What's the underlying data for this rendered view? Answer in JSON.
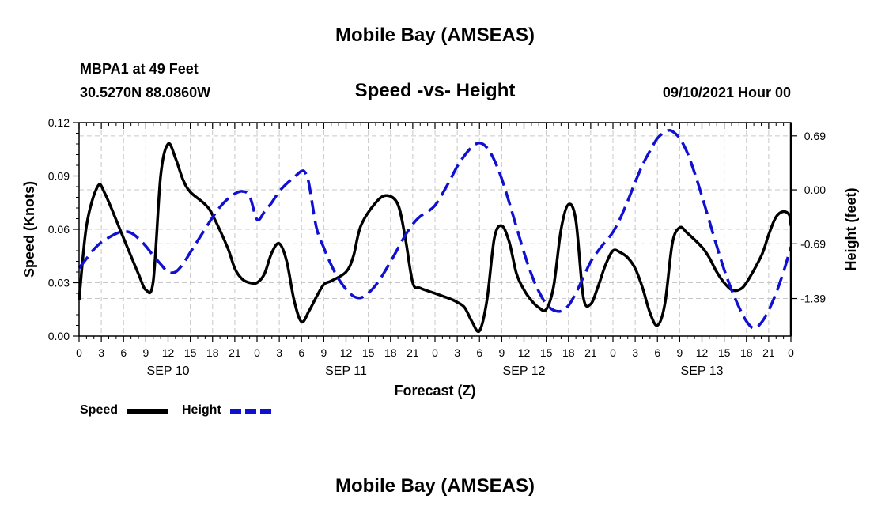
{
  "header": {
    "title": "Mobile Bay (AMSEAS)",
    "station": "MBPA1 at 49 Feet",
    "coords": "30.5270N  88.0860W",
    "subtitle": "Speed -vs- Height",
    "datetime": "09/10/2021 Hour 00"
  },
  "footer": {
    "title": "Mobile Bay (AMSEAS)"
  },
  "legend": {
    "speed_label": "Speed",
    "height_label": "Height",
    "speed_color": "#000000",
    "height_color": "#1010d0"
  },
  "chart_data": {
    "type": "line",
    "title": "Speed -vs- Height",
    "xlabel": "Forecast (Z)",
    "ylabel_left": "Speed (Knots)",
    "ylabel_right": "Height (feet)",
    "x_range_hours": [
      0,
      96
    ],
    "ylim_left": [
      0,
      0.12
    ],
    "ylim_right": [
      -1.87,
      0.86
    ],
    "x_ticks": [
      {
        "h": 0,
        "label": "0"
      },
      {
        "h": 3,
        "label": "3"
      },
      {
        "h": 6,
        "label": "6"
      },
      {
        "h": 9,
        "label": "9"
      },
      {
        "h": 12,
        "label": "12"
      },
      {
        "h": 15,
        "label": "15"
      },
      {
        "h": 18,
        "label": "18"
      },
      {
        "h": 21,
        "label": "21"
      },
      {
        "h": 24,
        "label": "0"
      },
      {
        "h": 27,
        "label": "3"
      },
      {
        "h": 30,
        "label": "6"
      },
      {
        "h": 33,
        "label": "9"
      },
      {
        "h": 36,
        "label": "12"
      },
      {
        "h": 39,
        "label": "15"
      },
      {
        "h": 42,
        "label": "18"
      },
      {
        "h": 45,
        "label": "21"
      },
      {
        "h": 48,
        "label": "0"
      },
      {
        "h": 51,
        "label": "3"
      },
      {
        "h": 54,
        "label": "6"
      },
      {
        "h": 57,
        "label": "9"
      },
      {
        "h": 60,
        "label": "12"
      },
      {
        "h": 63,
        "label": "15"
      },
      {
        "h": 66,
        "label": "18"
      },
      {
        "h": 69,
        "label": "21"
      },
      {
        "h": 72,
        "label": "0"
      },
      {
        "h": 75,
        "label": "3"
      },
      {
        "h": 78,
        "label": "6"
      },
      {
        "h": 81,
        "label": "9"
      },
      {
        "h": 84,
        "label": "12"
      },
      {
        "h": 87,
        "label": "15"
      },
      {
        "h": 90,
        "label": "18"
      },
      {
        "h": 93,
        "label": "21"
      },
      {
        "h": 96,
        "label": "0"
      }
    ],
    "day_labels": [
      {
        "h": 12,
        "label": "SEP 10"
      },
      {
        "h": 36,
        "label": "SEP 11"
      },
      {
        "h": 60,
        "label": "SEP 12"
      },
      {
        "h": 84,
        "label": "SEP 13"
      }
    ],
    "y_left_ticks": [
      {
        "v": 0.0,
        "label": "0.00"
      },
      {
        "v": 0.03,
        "label": "0.03"
      },
      {
        "v": 0.06,
        "label": "0.06"
      },
      {
        "v": 0.09,
        "label": "0.09"
      },
      {
        "v": 0.12,
        "label": "0.12"
      }
    ],
    "y_right_ticks": [
      {
        "v": 0.69,
        "label": "0.69"
      },
      {
        "v": 0.0,
        "label": "0.00"
      },
      {
        "v": -0.69,
        "label": "-0.69"
      },
      {
        "v": -1.39,
        "label": "-1.39"
      }
    ],
    "series": [
      {
        "name": "Speed",
        "axis": "left",
        "color": "#000000",
        "dash": "solid",
        "points": [
          [
            0,
            0.02
          ],
          [
            1,
            0.062
          ],
          [
            2.5,
            0.084
          ],
          [
            3.5,
            0.08
          ],
          [
            6,
            0.055
          ],
          [
            8,
            0.035
          ],
          [
            9,
            0.026
          ],
          [
            10,
            0.031
          ],
          [
            11,
            0.09
          ],
          [
            12,
            0.108
          ],
          [
            13,
            0.1
          ],
          [
            14,
            0.088
          ],
          [
            15,
            0.081
          ],
          [
            17,
            0.074
          ],
          [
            18,
            0.068
          ],
          [
            20,
            0.05
          ],
          [
            21,
            0.038
          ],
          [
            22,
            0.032
          ],
          [
            23,
            0.03
          ],
          [
            24,
            0.03
          ],
          [
            25,
            0.035
          ],
          [
            26,
            0.047
          ],
          [
            27,
            0.052
          ],
          [
            28,
            0.042
          ],
          [
            29,
            0.02
          ],
          [
            30,
            0.008
          ],
          [
            31,
            0.014
          ],
          [
            32,
            0.022
          ],
          [
            33,
            0.029
          ],
          [
            34,
            0.031
          ],
          [
            36,
            0.036
          ],
          [
            37,
            0.045
          ],
          [
            38,
            0.062
          ],
          [
            40,
            0.075
          ],
          [
            41.5,
            0.079
          ],
          [
            43,
            0.074
          ],
          [
            44,
            0.055
          ],
          [
            45,
            0.03
          ],
          [
            46,
            0.027
          ],
          [
            48,
            0.024
          ],
          [
            50,
            0.021
          ],
          [
            51,
            0.019
          ],
          [
            52,
            0.016
          ],
          [
            53,
            0.008
          ],
          [
            54,
            0.003
          ],
          [
            55,
            0.02
          ],
          [
            56,
            0.055
          ],
          [
            57,
            0.062
          ],
          [
            58,
            0.053
          ],
          [
            59,
            0.035
          ],
          [
            60,
            0.026
          ],
          [
            61,
            0.02
          ],
          [
            62,
            0.016
          ],
          [
            63,
            0.015
          ],
          [
            64,
            0.028
          ],
          [
            65,
            0.06
          ],
          [
            66,
            0.074
          ],
          [
            67,
            0.065
          ],
          [
            68,
            0.022
          ],
          [
            69,
            0.018
          ],
          [
            70,
            0.028
          ],
          [
            71,
            0.04
          ],
          [
            72,
            0.048
          ],
          [
            73,
            0.047
          ],
          [
            74,
            0.044
          ],
          [
            75,
            0.038
          ],
          [
            76,
            0.027
          ],
          [
            77,
            0.013
          ],
          [
            78,
            0.006
          ],
          [
            79,
            0.018
          ],
          [
            80,
            0.052
          ],
          [
            81,
            0.061
          ],
          [
            82,
            0.058
          ],
          [
            84,
            0.05
          ],
          [
            85,
            0.044
          ],
          [
            86,
            0.036
          ],
          [
            87,
            0.03
          ],
          [
            88,
            0.026
          ],
          [
            89,
            0.026
          ],
          [
            90,
            0.03
          ],
          [
            92,
            0.045
          ],
          [
            93,
            0.057
          ],
          [
            94,
            0.067
          ],
          [
            95,
            0.07
          ],
          [
            95.8,
            0.068
          ],
          [
            96,
            0.062
          ]
        ]
      },
      {
        "name": "Height",
        "axis": "right",
        "color": "#1010d0",
        "dash": "dashed",
        "points": [
          [
            0,
            -1.0
          ],
          [
            1,
            -0.88
          ],
          [
            2,
            -0.76
          ],
          [
            3,
            -0.67
          ],
          [
            4,
            -0.61
          ],
          [
            5,
            -0.56
          ],
          [
            6,
            -0.53
          ],
          [
            7,
            -0.55
          ],
          [
            8,
            -0.62
          ],
          [
            9,
            -0.72
          ],
          [
            10,
            -0.84
          ],
          [
            11,
            -0.95
          ],
          [
            12,
            -1.05
          ],
          [
            13,
            -1.05
          ],
          [
            14,
            -0.95
          ],
          [
            15,
            -0.8
          ],
          [
            16,
            -0.65
          ],
          [
            17,
            -0.5
          ],
          [
            18,
            -0.35
          ],
          [
            19,
            -0.22
          ],
          [
            20,
            -0.12
          ],
          [
            21,
            -0.05
          ],
          [
            22,
            -0.02
          ],
          [
            23,
            -0.08
          ],
          [
            24,
            -0.38
          ],
          [
            25,
            -0.28
          ],
          [
            26,
            -0.16
          ],
          [
            27,
            -0.02
          ],
          [
            28,
            0.08
          ],
          [
            29,
            0.16
          ],
          [
            30,
            0.24
          ],
          [
            30.5,
            0.22
          ],
          [
            31,
            0.08
          ],
          [
            32,
            -0.48
          ],
          [
            33,
            -0.74
          ],
          [
            34,
            -0.96
          ],
          [
            35,
            -1.14
          ],
          [
            36,
            -1.27
          ],
          [
            37,
            -1.36
          ],
          [
            38,
            -1.38
          ],
          [
            39,
            -1.32
          ],
          [
            40,
            -1.22
          ],
          [
            41,
            -1.08
          ],
          [
            42,
            -0.92
          ],
          [
            43,
            -0.75
          ],
          [
            44,
            -0.58
          ],
          [
            45,
            -0.44
          ],
          [
            46,
            -0.34
          ],
          [
            47,
            -0.28
          ],
          [
            48,
            -0.2
          ],
          [
            49,
            -0.05
          ],
          [
            50,
            0.12
          ],
          [
            51,
            0.3
          ],
          [
            52,
            0.44
          ],
          [
            53,
            0.55
          ],
          [
            54,
            0.6
          ],
          [
            55,
            0.54
          ],
          [
            56,
            0.38
          ],
          [
            57,
            0.14
          ],
          [
            58,
            -0.16
          ],
          [
            59,
            -0.48
          ],
          [
            60,
            -0.8
          ],
          [
            61,
            -1.08
          ],
          [
            62,
            -1.3
          ],
          [
            63,
            -1.46
          ],
          [
            64,
            -1.54
          ],
          [
            65,
            -1.55
          ],
          [
            66,
            -1.48
          ],
          [
            67,
            -1.32
          ],
          [
            68,
            -1.12
          ],
          [
            69,
            -0.92
          ],
          [
            70,
            -0.78
          ],
          [
            71,
            -0.66
          ],
          [
            72,
            -0.54
          ],
          [
            73,
            -0.36
          ],
          [
            74,
            -0.14
          ],
          [
            75,
            0.1
          ],
          [
            76,
            0.32
          ],
          [
            77,
            0.5
          ],
          [
            78,
            0.66
          ],
          [
            79,
            0.74
          ],
          [
            79.5,
            0.76
          ],
          [
            80,
            0.75
          ],
          [
            81,
            0.66
          ],
          [
            82,
            0.48
          ],
          [
            83,
            0.22
          ],
          [
            84,
            -0.08
          ],
          [
            85,
            -0.4
          ],
          [
            86,
            -0.72
          ],
          [
            87,
            -1.02
          ],
          [
            88,
            -1.28
          ],
          [
            89,
            -1.5
          ],
          [
            90,
            -1.68
          ],
          [
            91,
            -1.77
          ],
          [
            92,
            -1.7
          ],
          [
            93,
            -1.54
          ],
          [
            94,
            -1.32
          ],
          [
            95,
            -1.05
          ],
          [
            96,
            -0.73
          ]
        ]
      }
    ]
  }
}
